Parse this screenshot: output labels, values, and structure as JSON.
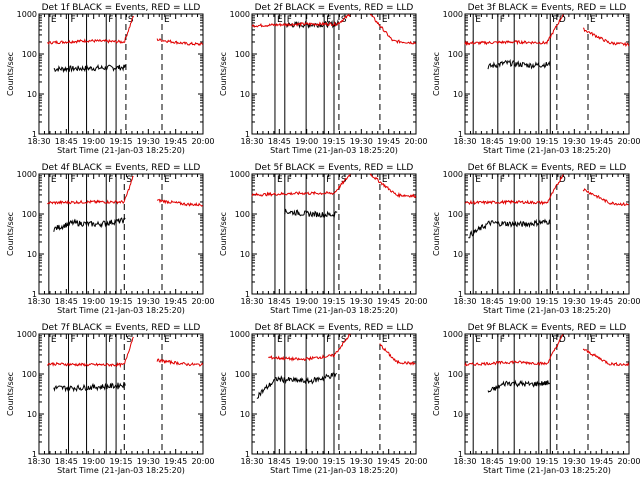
{
  "colors": {
    "events": "#000000",
    "lld": "#e00000",
    "axis": "#000000"
  },
  "chart_data": [
    {
      "type": "line",
      "title": "Det 1f BLACK = Events, RED = LLD",
      "ylabel": "Counts/sec",
      "xlabel": "Start Time (21-Jan-03 18:25:20)",
      "xticks": [
        "18:30",
        "18:45",
        "19:00",
        "19:15",
        "19:30",
        "19:45",
        "20:00"
      ],
      "yticks": [
        "1",
        "10",
        "100",
        "1000"
      ],
      "ylim": [
        1,
        1000
      ],
      "xlim_min": [
        0,
        100
      ],
      "series": [
        {
          "name": "Events",
          "x": [
            9,
            30,
            52,
            53
          ],
          "y": [
            42,
            44,
            46,
            48
          ],
          "segments": [
            [
              9,
              53
            ]
          ]
        },
        {
          "name": "LLD",
          "x": [
            5,
            30,
            52,
            58,
            72,
            90,
            100
          ],
          "y": [
            190,
            215,
            200,
            1000,
            230,
            180,
            175
          ],
          "segments": [
            [
              5,
              58
            ],
            [
              72,
              100
            ]
          ]
        }
      ],
      "vlines": [
        {
          "x": 6,
          "label": "E",
          "style": "solid"
        },
        {
          "x": 18,
          "label": "F",
          "style": "solid"
        },
        {
          "x": 29,
          "label": "",
          "style": "solid"
        },
        {
          "x": 41,
          "label": "F",
          "style": "solid"
        },
        {
          "x": 47,
          "label": "",
          "style": "solid"
        },
        {
          "x": 53,
          "label": "S",
          "style": "dashed"
        },
        {
          "x": 75,
          "label": "E",
          "style": "dashed"
        }
      ]
    },
    {
      "type": "line",
      "title": "Det 2f BLACK = Events, RED = LLD",
      "ylabel": "Counts/sec",
      "xlabel": "Start Time (21-Jan-03 18:25:20)",
      "xticks": [
        "18:30",
        "18:45",
        "19:00",
        "19:15",
        "19:30",
        "19:45",
        "20:00"
      ],
      "yticks": [
        "1",
        "10",
        "100",
        "1000"
      ],
      "ylim": [
        1,
        1000
      ],
      "xlim_min": [
        0,
        100
      ],
      "series": [
        {
          "name": "Events",
          "x": [
            20,
            35,
            50,
            53
          ],
          "y": [
            540,
            540,
            560,
            580
          ],
          "segments": [
            [
              20,
              53
            ]
          ]
        },
        {
          "name": "LLD",
          "x": [
            0,
            30,
            52,
            60,
            72,
            86,
            100
          ],
          "y": [
            510,
            560,
            560,
            1000,
            1000,
            210,
            190
          ],
          "segments": [
            [
              0,
              60
            ],
            [
              72,
              100
            ]
          ]
        }
      ],
      "vlines": [
        {
          "x": 14,
          "label": "E",
          "style": "solid"
        },
        {
          "x": 20,
          "label": "F",
          "style": "solid"
        },
        {
          "x": 33,
          "label": "",
          "style": "solid"
        },
        {
          "x": 44,
          "label": "F",
          "style": "solid"
        },
        {
          "x": 50,
          "label": "",
          "style": "solid"
        },
        {
          "x": 53,
          "label": "S",
          "style": "dashed"
        },
        {
          "x": 78,
          "label": "E",
          "style": "dashed"
        }
      ]
    },
    {
      "type": "line",
      "title": "Det 3f BLACK = Events, RED = LLD",
      "ylabel": "Counts/sec",
      "xlabel": "Start Time (21-Jan-03 18:25:20)",
      "xticks": [
        "18:30",
        "18:45",
        "19:00",
        "19:15",
        "19:30",
        "19:45",
        "20:00"
      ],
      "yticks": [
        "1",
        "10",
        "100",
        "1000"
      ],
      "ylim": [
        1,
        1000
      ],
      "xlim_min": [
        0,
        100
      ],
      "series": [
        {
          "name": "Events",
          "x": [
            14,
            25,
            40,
            52
          ],
          "y": [
            48,
            60,
            52,
            55
          ],
          "segments": [
            [
              14,
              52
            ]
          ]
        },
        {
          "name": "LLD",
          "x": [
            0,
            30,
            50,
            60,
            72,
            88,
            100
          ],
          "y": [
            185,
            200,
            190,
            1000,
            420,
            190,
            170
          ],
          "segments": [
            [
              0,
              60
            ],
            [
              72,
              100
            ]
          ]
        }
      ],
      "vlines": [
        {
          "x": 5,
          "label": "E",
          "style": "solid"
        },
        {
          "x": 20,
          "label": "F",
          "style": "solid"
        },
        {
          "x": 30,
          "label": "",
          "style": "solid"
        },
        {
          "x": 45,
          "label": "",
          "style": "solid"
        },
        {
          "x": 52,
          "label": "F",
          "style": "solid"
        },
        {
          "x": 56,
          "label": "D",
          "style": "dashed"
        },
        {
          "x": 75,
          "label": "E",
          "style": "dashed"
        }
      ]
    },
    {
      "type": "line",
      "title": "Det 4f BLACK = Events, RED = LLD",
      "ylabel": "Counts/sec",
      "xlabel": "Start Time (21-Jan-03 18:25:20)",
      "xticks": [
        "18:30",
        "18:45",
        "19:00",
        "19:15",
        "19:30",
        "19:45",
        "20:00"
      ],
      "yticks": [
        "1",
        "10",
        "100",
        "1000"
      ],
      "ylim": [
        1,
        1000
      ],
      "xlim_min": [
        0,
        100
      ],
      "series": [
        {
          "name": "Events",
          "x": [
            9,
            20,
            35,
            53
          ],
          "y": [
            42,
            60,
            55,
            70
          ],
          "segments": [
            [
              9,
              53
            ]
          ]
        },
        {
          "name": "LLD",
          "x": [
            5,
            30,
            52,
            58,
            72,
            90,
            100
          ],
          "y": [
            190,
            200,
            200,
            1000,
            220,
            175,
            170
          ],
          "segments": [
            [
              5,
              58
            ],
            [
              72,
              100
            ]
          ]
        }
      ],
      "vlines": [
        {
          "x": 6,
          "label": "E",
          "style": "solid"
        },
        {
          "x": 18,
          "label": "F",
          "style": "solid"
        },
        {
          "x": 29,
          "label": "",
          "style": "solid"
        },
        {
          "x": 41,
          "label": "F",
          "style": "solid"
        },
        {
          "x": 47,
          "label": "",
          "style": "solid"
        },
        {
          "x": 52,
          "label": "S",
          "style": "dashed"
        },
        {
          "x": 75,
          "label": "E",
          "style": "dashed"
        }
      ]
    },
    {
      "type": "line",
      "title": "Det 5f BLACK = Events, RED = LLD",
      "ylabel": "Counts/sec",
      "xlabel": "Start Time (21-Jan-03 18:25:20)",
      "xticks": [
        "18:30",
        "18:45",
        "19:00",
        "19:15",
        "19:30",
        "19:45",
        "20:00"
      ],
      "yticks": [
        "1",
        "10",
        "100",
        "1000"
      ],
      "ylim": [
        1,
        1000
      ],
      "xlim_min": [
        0,
        100
      ],
      "series": [
        {
          "name": "Events",
          "x": [
            20,
            35,
            50,
            52
          ],
          "y": [
            115,
            100,
            95,
            120
          ],
          "segments": [
            [
              20,
              52
            ]
          ]
        },
        {
          "name": "LLD",
          "x": [
            0,
            30,
            50,
            60,
            72,
            88,
            100
          ],
          "y": [
            300,
            330,
            330,
            1000,
            1000,
            300,
            280
          ],
          "segments": [
            [
              0,
              60
            ],
            [
              72,
              100
            ]
          ]
        }
      ],
      "vlines": [
        {
          "x": 14,
          "label": "E",
          "style": "solid"
        },
        {
          "x": 20,
          "label": "F",
          "style": "solid"
        },
        {
          "x": 33,
          "label": "",
          "style": "solid"
        },
        {
          "x": 44,
          "label": "F",
          "style": "solid"
        },
        {
          "x": 50,
          "label": "",
          "style": "solid"
        },
        {
          "x": 53,
          "label": "S",
          "style": "dashed"
        },
        {
          "x": 78,
          "label": "E",
          "style": "dashed"
        }
      ]
    },
    {
      "type": "line",
      "title": "Det 6f BLACK = Events, RED = LLD",
      "ylabel": "Counts/sec",
      "xlabel": "Start Time (21-Jan-03 18:25:20)",
      "xticks": [
        "18:30",
        "18:45",
        "19:00",
        "19:15",
        "19:30",
        "19:45",
        "20:00"
      ],
      "yticks": [
        "1",
        "10",
        "100",
        "1000"
      ],
      "ylim": [
        1,
        1000
      ],
      "xlim_min": [
        0,
        100
      ],
      "series": [
        {
          "name": "Events",
          "x": [
            2,
            15,
            35,
            52
          ],
          "y": [
            28,
            60,
            55,
            65
          ],
          "segments": [
            [
              2,
              52
            ]
          ]
        },
        {
          "name": "LLD",
          "x": [
            0,
            30,
            50,
            60,
            72,
            88,
            100
          ],
          "y": [
            190,
            200,
            190,
            1000,
            420,
            190,
            170
          ],
          "segments": [
            [
              0,
              60
            ],
            [
              72,
              100
            ]
          ]
        }
      ],
      "vlines": [
        {
          "x": 5,
          "label": "E",
          "style": "solid"
        },
        {
          "x": 20,
          "label": "F",
          "style": "solid"
        },
        {
          "x": 30,
          "label": "",
          "style": "solid"
        },
        {
          "x": 45,
          "label": "F",
          "style": "solid"
        },
        {
          "x": 52,
          "label": "",
          "style": "solid"
        },
        {
          "x": 56,
          "label": "D",
          "style": "dashed"
        },
        {
          "x": 75,
          "label": "E",
          "style": "dashed"
        }
      ]
    },
    {
      "type": "line",
      "title": "Det 7f BLACK = Events, RED = LLD",
      "ylabel": "Counts/sec",
      "xlabel": "Start Time (21-Jan-03 18:25:20)",
      "xticks": [
        "18:30",
        "18:45",
        "19:00",
        "19:15",
        "19:30",
        "19:45",
        "20:00"
      ],
      "yticks": [
        "1",
        "10",
        "100",
        "1000"
      ],
      "ylim": [
        1,
        1000
      ],
      "xlim_min": [
        0,
        100
      ],
      "series": [
        {
          "name": "Events",
          "x": [
            9,
            25,
            45,
            53
          ],
          "y": [
            45,
            45,
            50,
            55
          ],
          "segments": [
            [
              9,
              53
            ]
          ]
        },
        {
          "name": "LLD",
          "x": [
            5,
            30,
            52,
            58,
            72,
            90,
            100
          ],
          "y": [
            180,
            170,
            170,
            1000,
            220,
            175,
            170
          ],
          "segments": [
            [
              5,
              58
            ],
            [
              72,
              100
            ]
          ]
        }
      ],
      "vlines": [
        {
          "x": 6,
          "label": "E",
          "style": "solid"
        },
        {
          "x": 18,
          "label": "F",
          "style": "solid"
        },
        {
          "x": 29,
          "label": "",
          "style": "solid"
        },
        {
          "x": 41,
          "label": "F",
          "style": "solid"
        },
        {
          "x": 47,
          "label": "",
          "style": "solid"
        },
        {
          "x": 52,
          "label": "S",
          "style": "dashed"
        },
        {
          "x": 75,
          "label": "E",
          "style": "dashed"
        }
      ]
    },
    {
      "type": "line",
      "title": "Det 8f BLACK = Events, RED = LLD",
      "ylabel": "Counts/sec",
      "xlabel": "Start Time (21-Jan-03 18:25:20)",
      "xticks": [
        "18:30",
        "18:45",
        "19:00",
        "19:15",
        "19:30",
        "19:45",
        "20:00"
      ],
      "yticks": [
        "1",
        "10",
        "100",
        "1000"
      ],
      "ylim": [
        1,
        1000
      ],
      "xlim_min": [
        0,
        100
      ],
      "series": [
        {
          "name": "Events",
          "x": [
            3,
            15,
            35,
            52
          ],
          "y": [
            28,
            75,
            65,
            100
          ],
          "segments": [
            [
              3,
              52
            ]
          ]
        },
        {
          "name": "LLD",
          "x": [
            10,
            30,
            50,
            60,
            72,
            88,
            100
          ],
          "y": [
            260,
            230,
            290,
            1000,
            1000,
            200,
            180
          ],
          "segments": [
            [
              10,
              60
            ],
            [
              78,
              100
            ]
          ]
        }
      ],
      "vlines": [
        {
          "x": 14,
          "label": "E",
          "style": "solid"
        },
        {
          "x": 20,
          "label": "F",
          "style": "solid"
        },
        {
          "x": 33,
          "label": "",
          "style": "solid"
        },
        {
          "x": 44,
          "label": "F",
          "style": "solid"
        },
        {
          "x": 50,
          "label": "",
          "style": "solid"
        },
        {
          "x": 53,
          "label": "S",
          "style": "dashed"
        },
        {
          "x": 78,
          "label": "E",
          "style": "dashed"
        }
      ]
    },
    {
      "type": "line",
      "title": "Det 9f BLACK = Events, RED = LLD",
      "ylabel": "Counts/sec",
      "xlabel": "Start Time (21-Jan-03 18:25:20)",
      "xticks": [
        "18:30",
        "18:45",
        "19:00",
        "19:15",
        "19:30",
        "19:45",
        "20:00"
      ],
      "yticks": [
        "1",
        "10",
        "100",
        "1000"
      ],
      "ylim": [
        1,
        1000
      ],
      "xlim_min": [
        0,
        100
      ],
      "series": [
        {
          "name": "Events",
          "x": [
            14,
            25,
            40,
            52
          ],
          "y": [
            35,
            60,
            55,
            60
          ],
          "segments": [
            [
              14,
              52
            ]
          ]
        },
        {
          "name": "LLD",
          "x": [
            0,
            30,
            50,
            60,
            72,
            88,
            100
          ],
          "y": [
            170,
            200,
            180,
            1000,
            420,
            180,
            170
          ],
          "segments": [
            [
              0,
              60
            ],
            [
              72,
              100
            ]
          ]
        }
      ],
      "vlines": [
        {
          "x": 5,
          "label": "E",
          "style": "solid"
        },
        {
          "x": 20,
          "label": "F",
          "style": "solid"
        },
        {
          "x": 30,
          "label": "",
          "style": "solid"
        },
        {
          "x": 45,
          "label": "",
          "style": "solid"
        },
        {
          "x": 52,
          "label": "F",
          "style": "solid"
        },
        {
          "x": 56,
          "label": "D",
          "style": "dashed"
        },
        {
          "x": 75,
          "label": "E",
          "style": "dashed"
        }
      ]
    }
  ]
}
